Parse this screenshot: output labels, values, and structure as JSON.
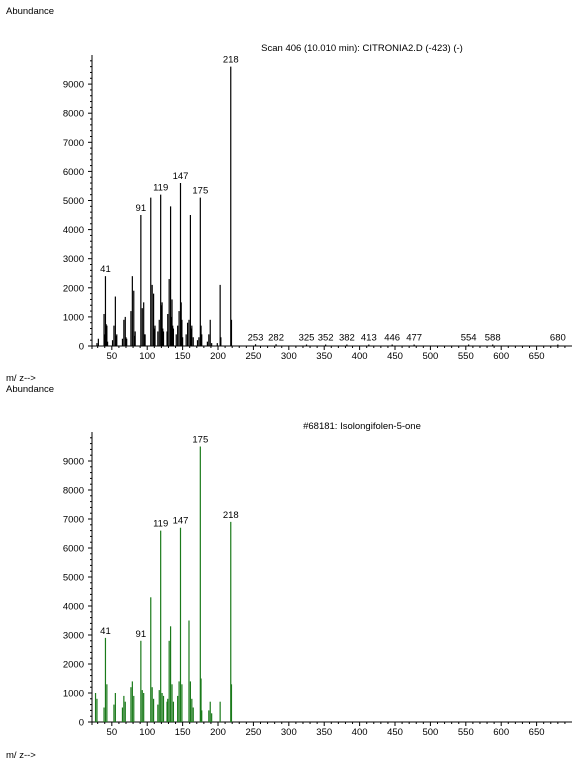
{
  "chart_data": [
    {
      "type": "bar",
      "title": "Scan 406 (10.010 min): CITRONIA2.D (-423) (-)",
      "ylabel": "Abundance",
      "xlabel": "m/ z-->",
      "color": "#000000",
      "xlim": [
        22,
        700
      ],
      "ylim": [
        0,
        10000
      ],
      "xticks": [
        50,
        100,
        150,
        200,
        250,
        300,
        350,
        400,
        450,
        500,
        550,
        600,
        650
      ],
      "yticks": [
        0,
        1000,
        2000,
        3000,
        4000,
        5000,
        6000,
        7000,
        8000,
        9000
      ],
      "x": [
        29,
        31,
        39,
        40,
        41,
        42,
        43,
        44,
        51,
        53,
        55,
        56,
        57,
        65,
        67,
        69,
        70,
        71,
        77,
        79,
        81,
        82,
        83,
        91,
        93,
        95,
        96,
        97,
        105,
        107,
        109,
        110,
        111,
        115,
        117,
        119,
        120,
        121,
        122,
        123,
        128,
        129,
        131,
        133,
        134,
        135,
        136,
        137,
        141,
        143,
        145,
        147,
        148,
        149,
        150,
        155,
        157,
        159,
        161,
        162,
        163,
        165,
        171,
        173,
        175,
        176,
        177,
        185,
        187,
        189,
        191,
        199,
        203,
        204,
        218,
        219,
        253,
        282,
        325,
        352,
        382,
        413,
        446,
        477,
        554,
        588,
        680
      ],
      "values": [
        100,
        250,
        1100,
        400,
        2400,
        750,
        700,
        150,
        200,
        700,
        1700,
        350,
        400,
        250,
        900,
        1000,
        300,
        250,
        1200,
        2400,
        1900,
        350,
        500,
        4500,
        1300,
        1500,
        400,
        400,
        5100,
        2100,
        1800,
        600,
        700,
        500,
        900,
        5200,
        1400,
        1500,
        600,
        500,
        500,
        1100,
        2300,
        4800,
        1000,
        1600,
        700,
        600,
        400,
        700,
        1200,
        5600,
        1500,
        900,
        300,
        400,
        800,
        900,
        4500,
        600,
        700,
        300,
        200,
        300,
        5100,
        700,
        400,
        150,
        400,
        900,
        100,
        100,
        2100,
        300,
        9600,
        900,
        60,
        60,
        50,
        50,
        50,
        50,
        50,
        50,
        50,
        50,
        50
      ],
      "peak_labels": [
        {
          "x": 41,
          "label": "41"
        },
        {
          "x": 91,
          "label": "91"
        },
        {
          "x": 119,
          "label": "119"
        },
        {
          "x": 147,
          "label": "147"
        },
        {
          "x": 175,
          "label": "175"
        },
        {
          "x": 218,
          "label": "218"
        },
        {
          "x": 253,
          "label": "253"
        },
        {
          "x": 282,
          "label": "282"
        },
        {
          "x": 325,
          "label": "325"
        },
        {
          "x": 352,
          "label": "352"
        },
        {
          "x": 382,
          "label": "382"
        },
        {
          "x": 413,
          "label": "413"
        },
        {
          "x": 446,
          "label": "446"
        },
        {
          "x": 477,
          "label": "477"
        },
        {
          "x": 554,
          "label": "554"
        },
        {
          "x": 588,
          "label": "588"
        },
        {
          "x": 680,
          "label": "680"
        }
      ]
    },
    {
      "type": "bar",
      "title": "#68181: Isolongifolen-5-one",
      "ylabel": "Abundance",
      "xlabel": "m/ z-->",
      "color": "#1a7a1a",
      "xlim": [
        22,
        700
      ],
      "ylim": [
        0,
        10000
      ],
      "xticks": [
        50,
        100,
        150,
        200,
        250,
        300,
        350,
        400,
        450,
        500,
        550,
        600,
        650
      ],
      "yticks": [
        0,
        1000,
        2000,
        3000,
        4000,
        5000,
        6000,
        7000,
        8000,
        9000
      ],
      "x": [
        27,
        29,
        39,
        41,
        43,
        53,
        55,
        65,
        67,
        69,
        77,
        79,
        81,
        91,
        93,
        95,
        105,
        107,
        109,
        115,
        117,
        119,
        121,
        123,
        128,
        129,
        131,
        133,
        135,
        137,
        143,
        145,
        147,
        149,
        159,
        161,
        163,
        165,
        175,
        176,
        177,
        187,
        189,
        191,
        203,
        218,
        219
      ],
      "values": [
        1000,
        800,
        500,
        2900,
        1300,
        600,
        1000,
        500,
        900,
        700,
        1200,
        1400,
        900,
        2800,
        1100,
        1000,
        4300,
        1200,
        800,
        600,
        1100,
        6600,
        1000,
        900,
        700,
        800,
        2800,
        3300,
        1300,
        700,
        900,
        1400,
        6700,
        1300,
        3500,
        1400,
        800,
        500,
        9500,
        1500,
        400,
        400,
        700,
        300,
        700,
        6900,
        1300
      ],
      "peak_labels": [
        {
          "x": 41,
          "label": "41"
        },
        {
          "x": 91,
          "label": "91"
        },
        {
          "x": 119,
          "label": "119"
        },
        {
          "x": 147,
          "label": "147"
        },
        {
          "x": 175,
          "label": "175"
        },
        {
          "x": 218,
          "label": "218"
        }
      ]
    }
  ]
}
